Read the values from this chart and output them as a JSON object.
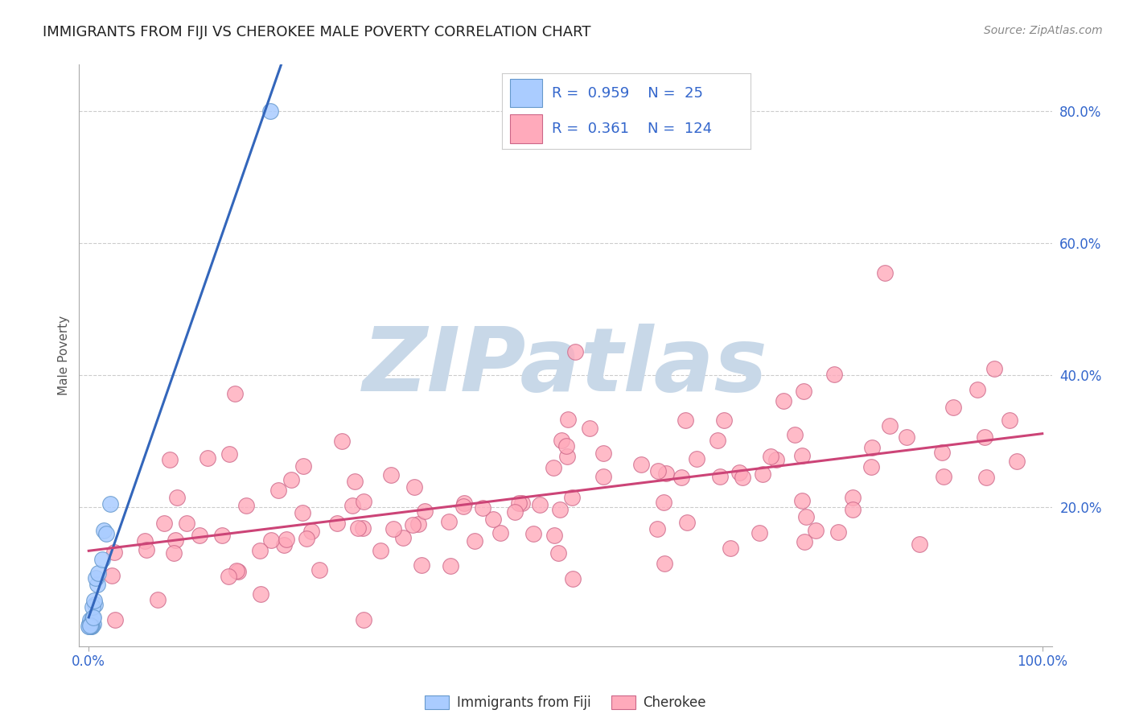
{
  "title": "IMMIGRANTS FROM FIJI VS CHEROKEE MALE POVERTY CORRELATION CHART",
  "source_text": "Source: ZipAtlas.com",
  "ylabel": "Male Poverty",
  "xlim": [
    -0.01,
    1.01
  ],
  "ylim": [
    -0.01,
    0.87
  ],
  "xtick_positions": [
    0.0,
    1.0
  ],
  "xticklabels": [
    "0.0%",
    "100.0%"
  ],
  "yticks_right": [
    0.2,
    0.4,
    0.6,
    0.8
  ],
  "ytick_right_labels": [
    "20.0%",
    "40.0%",
    "60.0%",
    "80.0%"
  ],
  "grid_color": "#cccccc",
  "background_color": "#ffffff",
  "fiji_color": "#aaccff",
  "cherokee_color": "#ffaabb",
  "fiji_edge_color": "#6699cc",
  "cherokee_edge_color": "#cc6688",
  "trend_fiji_color": "#3366bb",
  "trend_cherokee_color": "#cc4477",
  "legend_R1": "0.959",
  "legend_N1": "25",
  "legend_R2": "0.361",
  "legend_N2": "124",
  "legend_label1": "Immigrants from Fiji",
  "legend_label2": "Cherokee",
  "watermark": "ZIPatlas",
  "watermark_color": "#c8d8e8",
  "title_fontsize": 13,
  "source_fontsize": 10,
  "tick_fontsize": 12,
  "legend_fontsize": 13
}
